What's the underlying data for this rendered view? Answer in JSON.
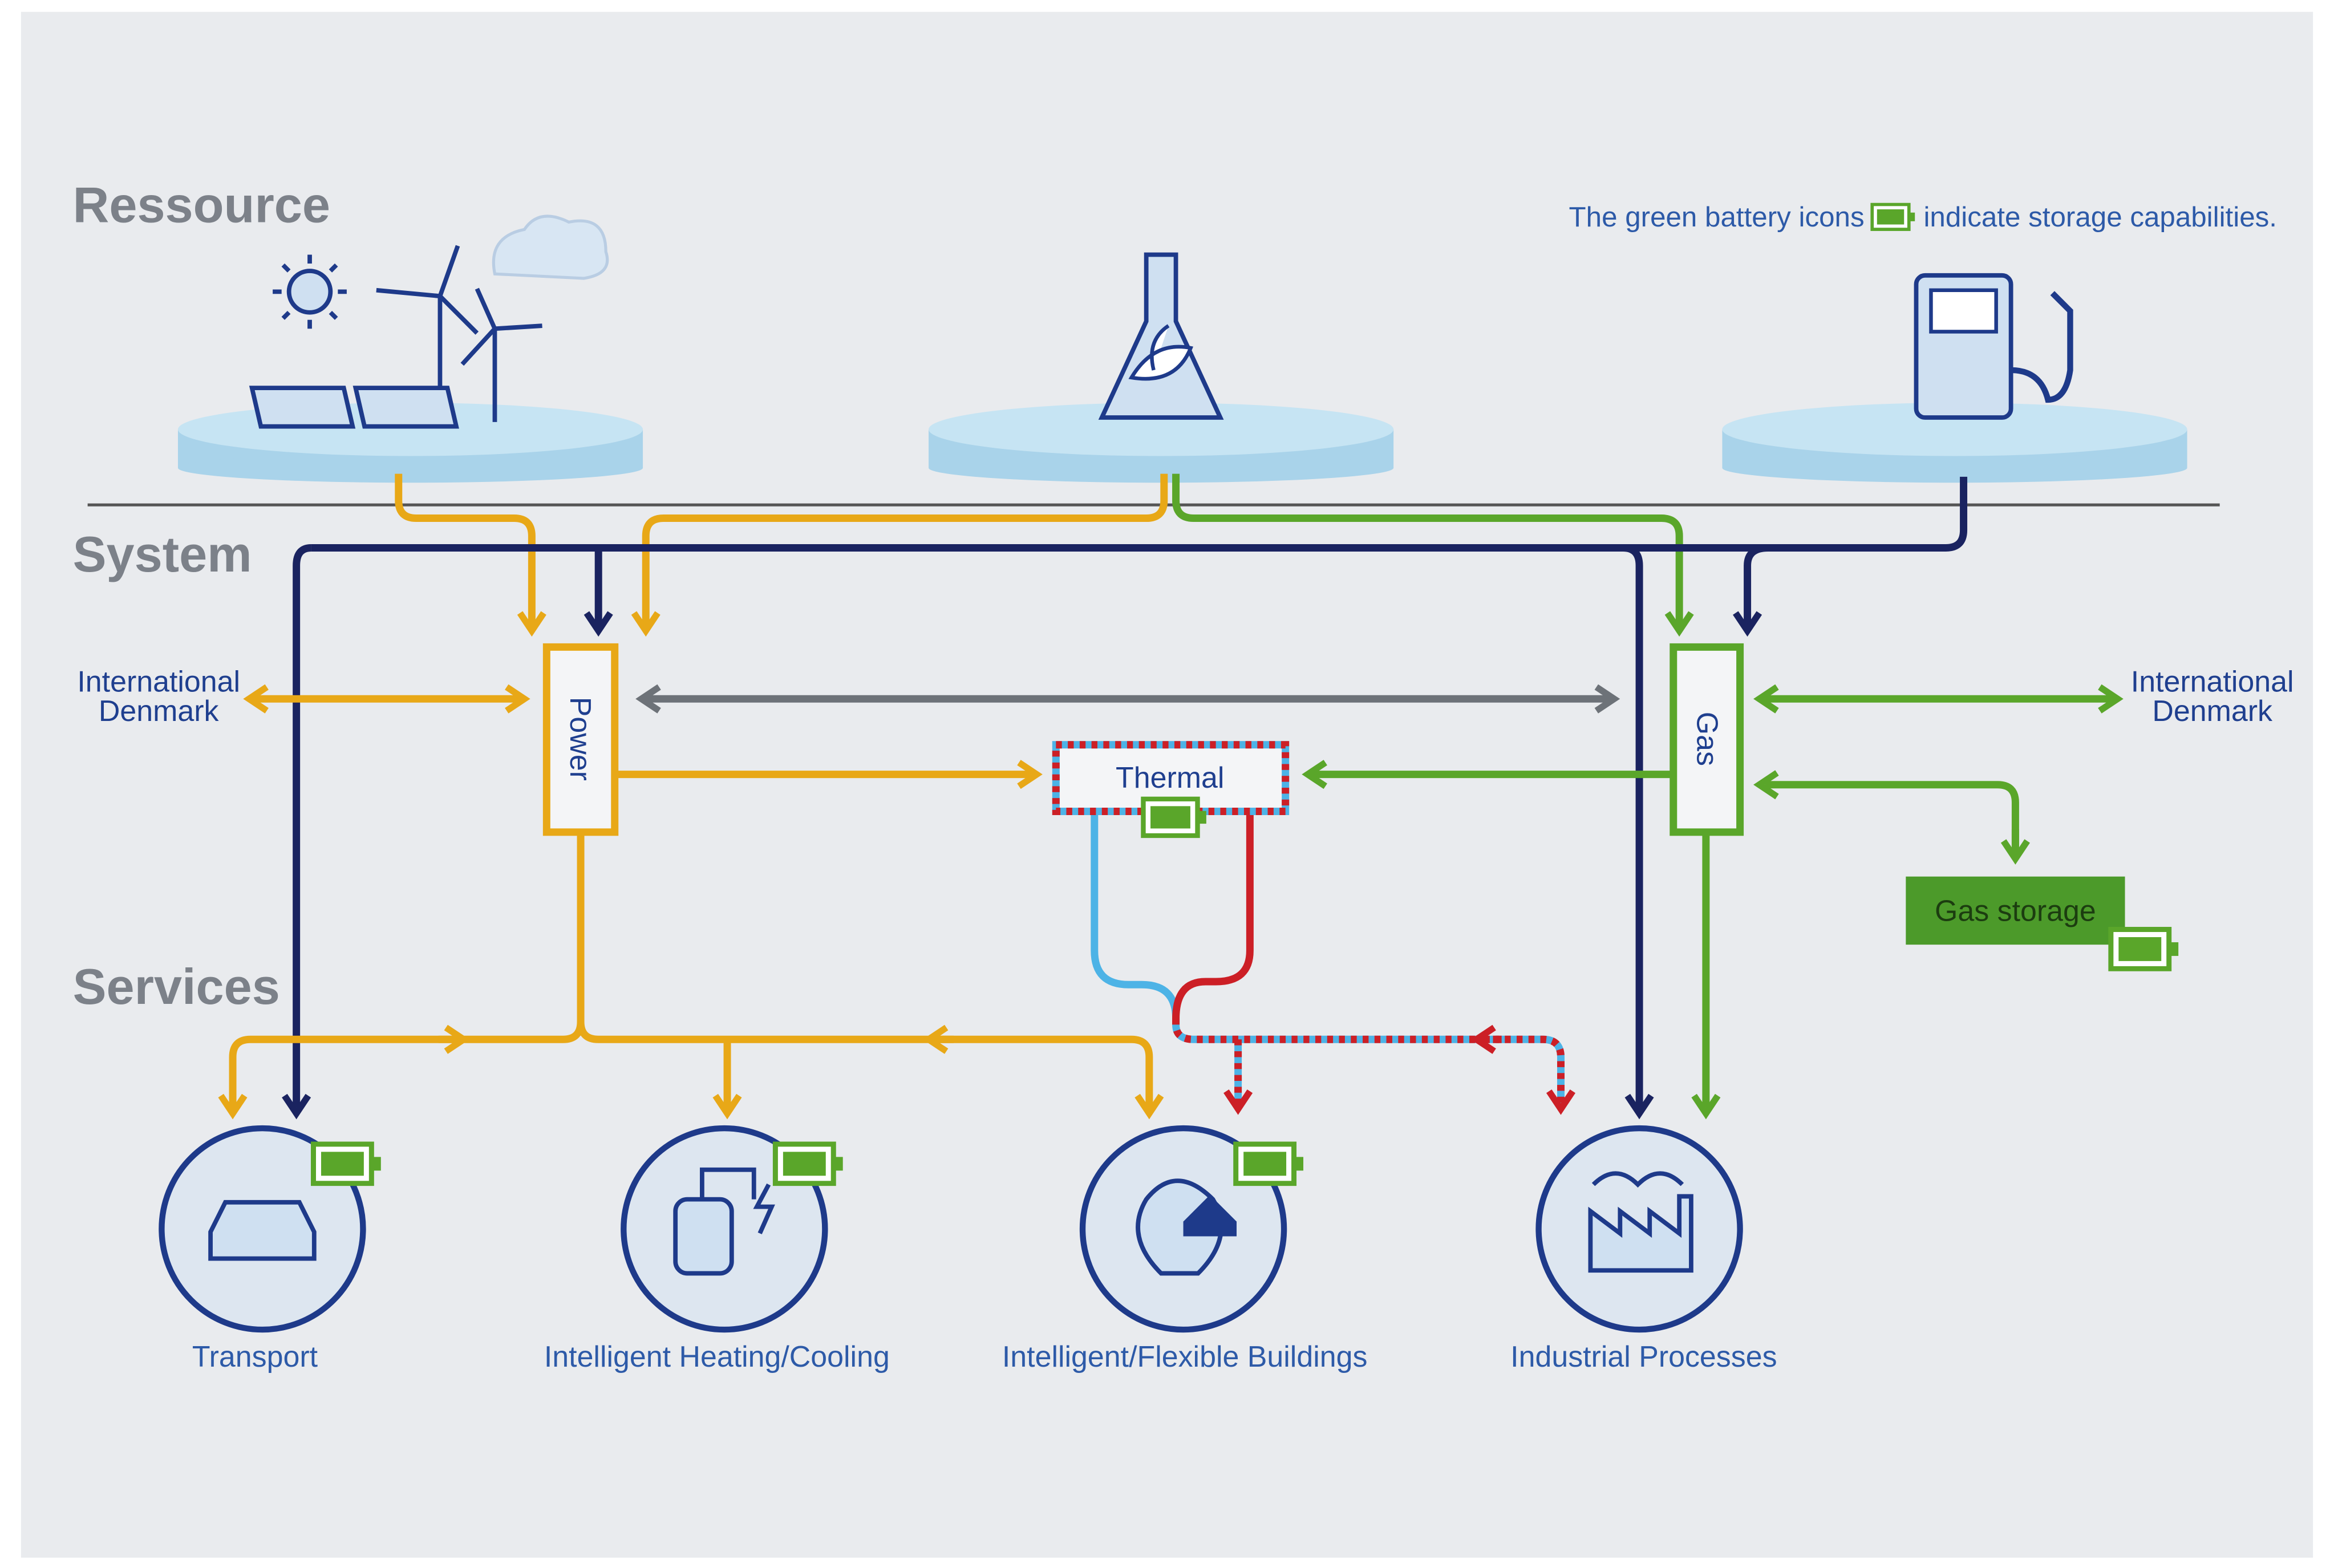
{
  "sections": {
    "resource": "Ressource",
    "system": "System",
    "services": "Services"
  },
  "note": {
    "before": "The green battery icons",
    "after": "indicate storage capabilities."
  },
  "nodes": {
    "power": "Power",
    "gas": "Gas",
    "thermal": "Thermal",
    "gas_storage": "Gas storage"
  },
  "international_left": {
    "line1": "International",
    "line2": "Denmark"
  },
  "international_right": {
    "line1": "International",
    "line2": "Denmark"
  },
  "services": [
    "Transport",
    "Intelligent Heating/Cooling",
    "Intelligent/Flexible Buildings",
    "Industrial Processes"
  ]
}
